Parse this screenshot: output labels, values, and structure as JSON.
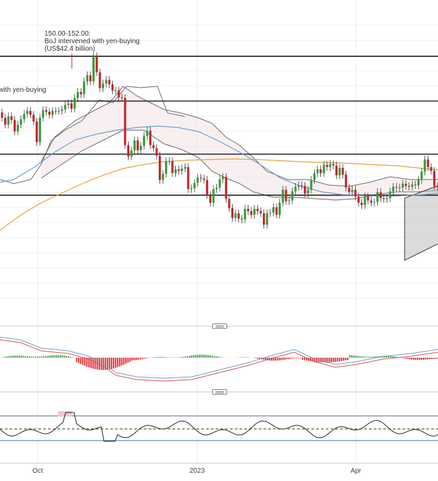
{
  "chart_data": [
    {
      "type": "candlestick",
      "x_axis": {
        "labels": [
          "Oct",
          "2023",
          "Apr"
        ]
      },
      "horizontal_levels": [
        151.9,
        146.0,
        139.0,
        133.6
      ],
      "channel": {
        "upper": [
          [
            133.2,
            127.6
          ],
          [
            140.0,
            171.3
          ]
        ],
        "lower": [
          [
            125.0,
            127.6
          ],
          [
            134.0,
            171.3
          ]
        ]
      },
      "annotations": [
        {
          "lines": [
            "150.00-152.00:",
            "BoJ intervened with yen-buying",
            "(US$42.4 billion)"
          ]
        },
        {
          "lines": [
            "with yen-buying"
          ]
        }
      ],
      "candles": [
        [
          144.5,
          143.8
        ],
        [
          143.8,
          142.9
        ],
        [
          142.9,
          144.0
        ],
        [
          144.0,
          143.5
        ],
        [
          143.5,
          142.0
        ],
        [
          142.0,
          142.9
        ],
        [
          142.9,
          143.6
        ],
        [
          143.6,
          144.3
        ],
        [
          144.3,
          144.7
        ],
        [
          144.7,
          144.2
        ],
        [
          144.2,
          143.3
        ],
        [
          143.3,
          140.6
        ],
        [
          140.6,
          143.8
        ],
        [
          143.8,
          144.8
        ],
        [
          144.8,
          144.6
        ],
        [
          144.6,
          144.2
        ],
        [
          144.2,
          144.7
        ],
        [
          144.7,
          144.7
        ],
        [
          144.7,
          144.7
        ],
        [
          144.7,
          144.9
        ],
        [
          144.9,
          145.5
        ],
        [
          145.5,
          145.7
        ],
        [
          145.7,
          145.0
        ],
        [
          145.0,
          146.4
        ],
        [
          146.4,
          147.2
        ],
        [
          147.2,
          146.9
        ],
        [
          146.9,
          148.6
        ],
        [
          148.6,
          149.4
        ],
        [
          149.4,
          148.6
        ],
        [
          148.6,
          151.9
        ],
        [
          151.9,
          149.8
        ],
        [
          149.8,
          147.7
        ],
        [
          147.7,
          148.3
        ],
        [
          148.3,
          148.8
        ],
        [
          148.8,
          148.2
        ],
        [
          148.2,
          147.4
        ],
        [
          147.4,
          147.4
        ],
        [
          147.4,
          146.5
        ],
        [
          146.5,
          146.4
        ],
        [
          146.4,
          140.2
        ],
        [
          140.2,
          138.7
        ],
        [
          138.7,
          139.5
        ],
        [
          139.5,
          140.8
        ],
        [
          140.8,
          139.5
        ],
        [
          139.5,
          140.1
        ],
        [
          140.1,
          141.4
        ],
        [
          141.4,
          142.1
        ],
        [
          142.1,
          140.2
        ],
        [
          140.2,
          139.8
        ],
        [
          139.8,
          138.8
        ],
        [
          138.8,
          135.6
        ],
        [
          135.6,
          136.4
        ],
        [
          136.4,
          138.1
        ],
        [
          138.1,
          138.1
        ],
        [
          138.1,
          136.5
        ],
        [
          136.5,
          137.0
        ],
        [
          137.0,
          136.8
        ],
        [
          136.8,
          137.1
        ],
        [
          137.1,
          137.3
        ],
        [
          137.3,
          134.4
        ],
        [
          134.4,
          134.5
        ],
        [
          134.5,
          135.2
        ],
        [
          135.2,
          135.9
        ],
        [
          135.9,
          135.8
        ],
        [
          135.8,
          135.6
        ],
        [
          135.6,
          133.6
        ],
        [
          133.6,
          132.6
        ],
        [
          132.6,
          134.4
        ],
        [
          134.4,
          134.6
        ],
        [
          134.6,
          135.7
        ],
        [
          135.7,
          136.0
        ],
        [
          136.0,
          133.1
        ],
        [
          133.1,
          131.9
        ],
        [
          131.9,
          130.6
        ],
        [
          130.6,
          131.2
        ],
        [
          131.2,
          130.5
        ],
        [
          130.5,
          130.4
        ],
        [
          130.4,
          131.8
        ],
        [
          131.8,
          131.5
        ],
        [
          131.5,
          131.0
        ],
        [
          131.0,
          131.8
        ],
        [
          131.8,
          131.5
        ],
        [
          131.5,
          131.2
        ],
        [
          131.2,
          129.7
        ],
        [
          129.7,
          131.2
        ],
        [
          131.2,
          131.3
        ],
        [
          131.3,
          132.0
        ],
        [
          132.0,
          131.0
        ],
        [
          131.0,
          132.6
        ],
        [
          132.6,
          134.3
        ],
        [
          134.3,
          132.8
        ],
        [
          132.8,
          132.9
        ],
        [
          132.9,
          134.1
        ],
        [
          134.1,
          134.7
        ],
        [
          134.7,
          134.9
        ],
        [
          134.9,
          134.8
        ],
        [
          134.8,
          133.8
        ],
        [
          133.8,
          134.3
        ],
        [
          134.3,
          135.6
        ],
        [
          135.6,
          136.5
        ],
        [
          136.5,
          137.0
        ],
        [
          137.0,
          136.5
        ],
        [
          136.5,
          137.6
        ],
        [
          137.6,
          137.3
        ],
        [
          137.3,
          137.7
        ],
        [
          137.7,
          137.5
        ],
        [
          137.5,
          136.2
        ],
        [
          136.2,
          137.2
        ],
        [
          137.2,
          136.3
        ],
        [
          136.3,
          134.6
        ],
        [
          134.6,
          134.0
        ],
        [
          134.0,
          134.3
        ],
        [
          134.3,
          133.4
        ],
        [
          133.4,
          132.6
        ],
        [
          132.6,
          132.3
        ],
        [
          132.3,
          133.4
        ],
        [
          133.4,
          132.9
        ],
        [
          132.9,
          132.6
        ],
        [
          132.6,
          132.7
        ],
        [
          132.7,
          134.0
        ],
        [
          134.0,
          133.2
        ],
        [
          133.2,
          133.1
        ],
        [
          133.1,
          133.2
        ],
        [
          133.2,
          134.1
        ],
        [
          134.1,
          134.7
        ],
        [
          134.7,
          134.6
        ],
        [
          134.6,
          134.6
        ],
        [
          134.6,
          135.1
        ],
        [
          135.1,
          134.8
        ],
        [
          134.8,
          134.7
        ],
        [
          134.7,
          135.0
        ],
        [
          135.0,
          134.9
        ],
        [
          134.9,
          135.6
        ],
        [
          135.6,
          136.7
        ],
        [
          136.7,
          138.3
        ],
        [
          138.3,
          137.3
        ],
        [
          137.3,
          136.8
        ],
        [
          136.8,
          134.8
        ],
        [
          134.8,
          134.7
        ],
        [
          134.7,
          135.3
        ],
        [
          135.3,
          135.3
        ],
        [
          135.3,
          135.8
        ],
        [
          135.8,
          136.5
        ],
        [
          136.5,
          138.2
        ],
        [
          138.2,
          139.0
        ],
        [
          139.0,
          138.6
        ]
      ]
    },
    {
      "type": "macd"
    },
    {
      "type": "rsi"
    }
  ]
}
